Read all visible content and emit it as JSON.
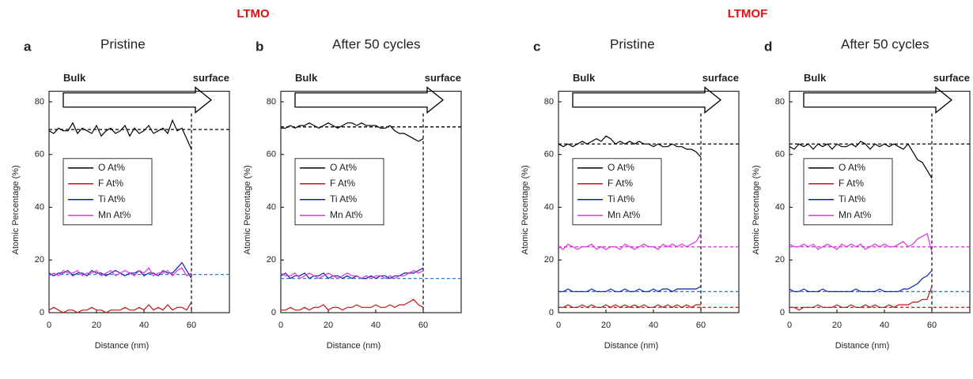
{
  "group_titles": [
    "LTMO",
    "LTMOF"
  ],
  "chart_data": [
    {
      "type": "line",
      "panel_label": "a",
      "title": "Pristine",
      "annotations": [
        "Bulk",
        "surface"
      ],
      "x_label": "Distance (nm)",
      "y_label": "Atomic Percentage (%)",
      "xlim": [
        0,
        76
      ],
      "ylim": [
        0,
        84
      ],
      "xticks": [
        0,
        20,
        40,
        60
      ],
      "yticks": [
        0,
        20,
        40,
        60,
        80
      ],
      "legend": "center left",
      "vline": 60,
      "reference_lines": [
        {
          "value": 69.5,
          "color": "#000000"
        },
        {
          "value": 14.5,
          "color": "#2e7fd0"
        }
      ],
      "x": [
        0,
        2,
        4,
        6,
        8,
        10,
        12,
        14,
        16,
        18,
        20,
        22,
        24,
        26,
        28,
        30,
        32,
        34,
        36,
        38,
        40,
        42,
        44,
        46,
        48,
        50,
        52,
        54,
        56,
        58,
        60
      ],
      "series": [
        {
          "name": "O At%",
          "color": "#000000",
          "values": [
            69,
            68,
            70,
            69,
            69,
            72,
            68,
            70,
            69,
            68,
            71,
            67,
            69,
            70,
            68,
            69,
            71,
            67,
            70,
            68,
            69,
            71,
            68,
            69,
            70,
            68,
            73,
            69,
            70,
            66,
            62
          ]
        },
        {
          "name": "F At%",
          "color": "#c0161b",
          "values": [
            1,
            2,
            1,
            0,
            1,
            1,
            0,
            1,
            1,
            2,
            1,
            1,
            0,
            1,
            1,
            1,
            2,
            1,
            1,
            2,
            1,
            3,
            1,
            2,
            1,
            3,
            1,
            2,
            2,
            1,
            4
          ]
        },
        {
          "name": "Ti At%",
          "color": "#0c1fb0",
          "values": [
            15,
            14,
            15,
            15,
            16,
            14,
            15,
            15,
            14,
            16,
            15,
            15,
            14,
            15,
            16,
            15,
            14,
            15,
            15,
            16,
            14,
            15,
            15,
            14,
            16,
            15,
            15,
            17,
            19,
            16,
            13
          ]
        },
        {
          "name": "Mn At%",
          "color": "#e030e0",
          "values": [
            14,
            15,
            14,
            16,
            15,
            15,
            16,
            14,
            15,
            15,
            16,
            14,
            15,
            16,
            14,
            15,
            16,
            15,
            14,
            16,
            15,
            17,
            14,
            15,
            15,
            16,
            14,
            16,
            17,
            14,
            15
          ]
        }
      ]
    },
    {
      "type": "line",
      "panel_label": "b",
      "title": "After 50 cycles",
      "annotations": [
        "Bulk",
        "surface"
      ],
      "x_label": "Distance (nm)",
      "y_label": "Atomic Percentage (%)",
      "xlim": [
        0,
        76
      ],
      "ylim": [
        0,
        84
      ],
      "xticks": [
        0,
        20,
        40,
        60
      ],
      "yticks": [
        0,
        20,
        40,
        60,
        80
      ],
      "legend": "center left",
      "vline": 60,
      "reference_lines": [
        {
          "value": 70.5,
          "color": "#000000"
        },
        {
          "value": 13,
          "color": "#2e7fd0"
        }
      ],
      "x": [
        0,
        2,
        4,
        6,
        8,
        10,
        12,
        14,
        16,
        18,
        20,
        22,
        24,
        26,
        28,
        30,
        32,
        34,
        36,
        38,
        40,
        42,
        44,
        46,
        48,
        50,
        52,
        54,
        56,
        58,
        60
      ],
      "series": [
        {
          "name": "O At%",
          "color": "#000000",
          "values": [
            70,
            70,
            71,
            70,
            71,
            71,
            72,
            71,
            70,
            71,
            72,
            71,
            70,
            71,
            72,
            72,
            71,
            72,
            71,
            71,
            71,
            70,
            70,
            71,
            69,
            68,
            68,
            67,
            66,
            65,
            66
          ]
        },
        {
          "name": "F At%",
          "color": "#c0161b",
          "values": [
            1,
            1,
            2,
            1,
            1,
            2,
            1,
            2,
            2,
            3,
            1,
            2,
            2,
            1,
            2,
            2,
            3,
            2,
            2,
            2,
            3,
            2,
            2,
            3,
            2,
            3,
            3,
            4,
            5,
            3,
            2
          ]
        },
        {
          "name": "Ti At%",
          "color": "#0c1fb0",
          "values": [
            14,
            15,
            13,
            14,
            14,
            15,
            13,
            14,
            14,
            15,
            13,
            14,
            14,
            13,
            14,
            13,
            14,
            13,
            13,
            14,
            13,
            14,
            14,
            13,
            14,
            14,
            15,
            15,
            15,
            16,
            17
          ]
        },
        {
          "name": "Mn At%",
          "color": "#e030e0",
          "values": [
            15,
            14,
            14,
            15,
            13,
            14,
            15,
            14,
            13,
            14,
            15,
            14,
            13,
            14,
            15,
            14,
            14,
            13,
            14,
            13,
            14,
            14,
            13,
            14,
            13,
            14,
            14,
            15,
            16,
            15,
            16
          ]
        }
      ]
    },
    {
      "type": "line",
      "panel_label": "c",
      "title": "Pristine",
      "annotations": [
        "Bulk",
        "surface"
      ],
      "x_label": "Distance (nm)",
      "y_label": "Atomic Percentage (%)",
      "xlim": [
        0,
        76
      ],
      "ylim": [
        0,
        84
      ],
      "xticks": [
        0,
        20,
        40,
        60
      ],
      "yticks": [
        0,
        20,
        40,
        60,
        80
      ],
      "legend": "center left",
      "vline": 60,
      "reference_lines": [
        {
          "value": 64,
          "color": "#000000"
        },
        {
          "value": 25,
          "color": "#e030e0"
        },
        {
          "value": 8,
          "color": "#2e7fd0"
        },
        {
          "value": 2,
          "color": "#e02020"
        }
      ],
      "x": [
        0,
        2,
        4,
        6,
        8,
        10,
        12,
        14,
        16,
        18,
        20,
        22,
        24,
        26,
        28,
        30,
        32,
        34,
        36,
        38,
        40,
        42,
        44,
        46,
        48,
        50,
        52,
        54,
        56,
        58,
        60
      ],
      "series": [
        {
          "name": "O At%",
          "color": "#000000",
          "values": [
            64,
            63,
            64,
            63,
            64,
            65,
            64,
            65,
            66,
            65,
            67,
            66,
            64,
            65,
            64,
            65,
            64,
            65,
            64,
            64,
            63,
            64,
            63,
            63,
            64,
            63,
            63,
            62,
            62,
            61,
            59
          ]
        },
        {
          "name": "F At%",
          "color": "#c0161b",
          "values": [
            2,
            2,
            3,
            2,
            2,
            3,
            2,
            3,
            2,
            2,
            3,
            2,
            3,
            2,
            3,
            2,
            3,
            2,
            3,
            2,
            2,
            3,
            2,
            3,
            2,
            3,
            2,
            3,
            2,
            3,
            3
          ]
        },
        {
          "name": "Ti At%",
          "color": "#0c1fb0",
          "values": [
            8,
            8,
            9,
            8,
            8,
            8,
            8,
            9,
            8,
            8,
            8,
            9,
            8,
            8,
            9,
            8,
            8,
            9,
            8,
            8,
            9,
            8,
            9,
            9,
            8,
            9,
            9,
            9,
            9,
            9,
            10
          ]
        },
        {
          "name": "Mn At%",
          "color": "#e030e0",
          "values": [
            25,
            24,
            26,
            25,
            24,
            25,
            25,
            26,
            24,
            25,
            24,
            25,
            25,
            24,
            26,
            25,
            24,
            25,
            26,
            25,
            25,
            24,
            26,
            25,
            26,
            25,
            26,
            25,
            26,
            27,
            30
          ]
        }
      ]
    },
    {
      "type": "line",
      "panel_label": "d",
      "title": "After 50 cycles",
      "annotations": [
        "Bulk",
        "surface"
      ],
      "x_label": "Distance (nm)",
      "y_label": "Atomic Percentage (%)",
      "xlim": [
        0,
        76
      ],
      "ylim": [
        0,
        84
      ],
      "xticks": [
        0,
        20,
        40,
        60
      ],
      "yticks": [
        0,
        20,
        40,
        60,
        80
      ],
      "legend": "center left",
      "vline": 60,
      "reference_lines": [
        {
          "value": 64,
          "color": "#000000"
        },
        {
          "value": 25,
          "color": "#e030e0"
        },
        {
          "value": 8,
          "color": "#2e7fd0"
        },
        {
          "value": 2,
          "color": "#e02020"
        }
      ],
      "x": [
        0,
        2,
        4,
        6,
        8,
        10,
        12,
        14,
        16,
        18,
        20,
        22,
        24,
        26,
        28,
        30,
        32,
        34,
        36,
        38,
        40,
        42,
        44,
        46,
        48,
        50,
        52,
        54,
        56,
        58,
        60
      ],
      "series": [
        {
          "name": "O At%",
          "color": "#000000",
          "values": [
            63,
            62,
            64,
            63,
            64,
            62,
            64,
            63,
            64,
            62,
            64,
            63,
            63,
            64,
            63,
            65,
            64,
            62,
            64,
            63,
            64,
            63,
            64,
            63,
            62,
            64,
            61,
            58,
            57,
            54,
            51
          ]
        },
        {
          "name": "F At%",
          "color": "#c0161b",
          "values": [
            2,
            2,
            1,
            2,
            2,
            2,
            3,
            2,
            2,
            2,
            3,
            2,
            2,
            3,
            2,
            2,
            3,
            2,
            3,
            2,
            2,
            3,
            2,
            3,
            3,
            3,
            4,
            4,
            5,
            5,
            10
          ]
        },
        {
          "name": "Ti At%",
          "color": "#0c1fb0",
          "values": [
            9,
            8,
            8,
            9,
            8,
            8,
            8,
            9,
            8,
            8,
            8,
            8,
            8,
            8,
            9,
            8,
            8,
            8,
            8,
            9,
            8,
            8,
            8,
            8,
            9,
            9,
            10,
            11,
            13,
            14,
            16
          ]
        },
        {
          "name": "Mn At%",
          "color": "#e030e0",
          "values": [
            26,
            25,
            25,
            26,
            25,
            26,
            24,
            25,
            26,
            25,
            24,
            26,
            25,
            26,
            25,
            26,
            24,
            25,
            26,
            25,
            26,
            25,
            25,
            26,
            27,
            25,
            26,
            28,
            29,
            30,
            23
          ]
        }
      ]
    }
  ]
}
